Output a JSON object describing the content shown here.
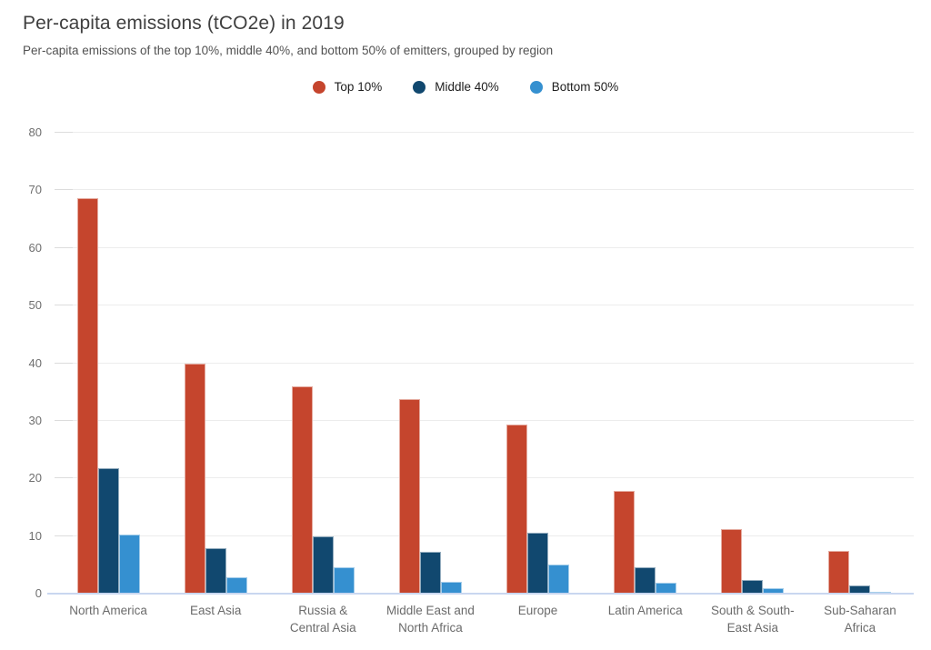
{
  "header": {
    "title": "Per-capita emissions (tCO2e) in 2019",
    "subtitle": "Per-capita emissions of the top 10%, middle 40%, and bottom 50% of emitters, grouped by region"
  },
  "chart_data": {
    "type": "bar",
    "title": "Per-capita emissions (tCO2e) in 2019",
    "subtitle": "Per-capita emissions of the top 10%, middle 40%, and bottom 50% of emitters, grouped by region",
    "categories": [
      "North America",
      "East Asia",
      "Russia &\nCentral Asia",
      "Middle East and\nNorth Africa",
      "Europe",
      "Latin America",
      "South & South-\nEast Asia",
      "Sub-Saharan\nAfrica"
    ],
    "series": [
      {
        "name": "Top 10%",
        "color": "#c5452d",
        "values": [
          68.7,
          39.9,
          36.0,
          33.8,
          29.3,
          17.8,
          11.2,
          7.4
        ]
      },
      {
        "name": "Middle 40%",
        "color": "#11486f",
        "values": [
          21.7,
          7.9,
          9.9,
          7.3,
          10.6,
          4.6,
          2.4,
          1.5
        ]
      },
      {
        "name": "Bottom 50%",
        "color": "#3590d0",
        "values": [
          10.3,
          2.8,
          4.5,
          2.1,
          5.0,
          1.9,
          0.9,
          0.3
        ]
      }
    ],
    "xlabel": "",
    "ylabel": "",
    "ylim": [
      0,
      80
    ],
    "yticks": [
      0,
      10,
      20,
      30,
      40,
      50,
      60,
      70,
      80
    ],
    "grid": true,
    "legend_position": "top-center",
    "colors": {
      "grid": "#ececec",
      "tick": "#dcdcdc",
      "zero_axis": "#c9d7f0",
      "tick_label": "#6f6f6f",
      "category_label": "#6b6b6b",
      "title": "#3f3f3f",
      "subtitle": "#525252"
    }
  }
}
